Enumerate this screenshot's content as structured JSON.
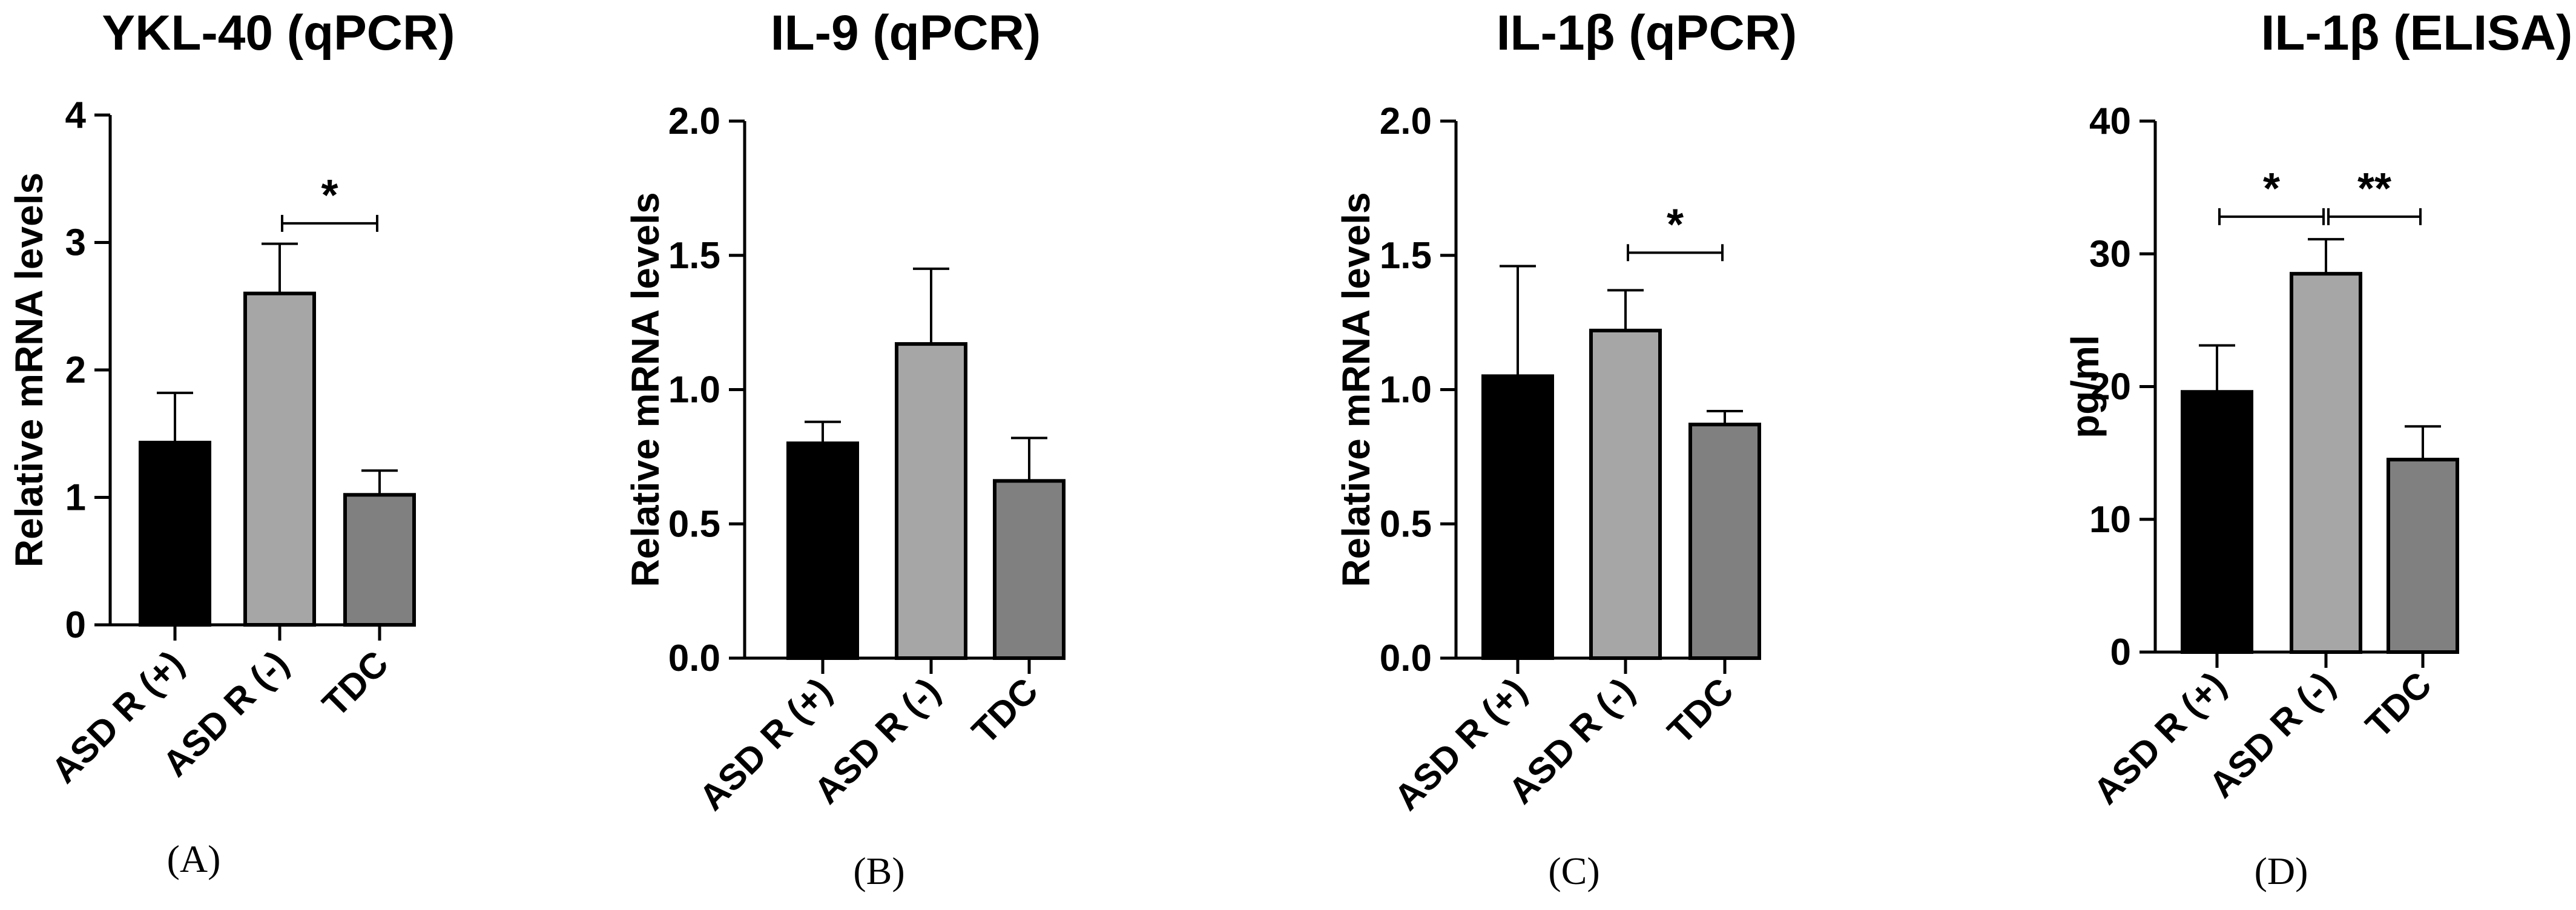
{
  "chart_data": [
    {
      "type": "bar",
      "title": "YKL-40 (qPCR)",
      "ylabel": "Relative mRNA levels",
      "xlabel": "",
      "panel_label": "(A)",
      "categories": [
        "ASD R (+)",
        "ASD R (-)",
        "TDC"
      ],
      "values": [
        1.43,
        2.6,
        1.02
      ],
      "errors": [
        0.39,
        0.39,
        0.19
      ],
      "bar_colors": [
        "#000000",
        "#a6a6a6",
        "#808080"
      ],
      "ylim": [
        0,
        4
      ],
      "yticks": [
        0,
        1,
        2,
        3,
        4
      ],
      "ytick_labels": [
        "0",
        "1",
        "2",
        "3",
        "4"
      ],
      "significance": [
        {
          "from": 1,
          "to": 2,
          "label": "*",
          "y": 3.15
        }
      ]
    },
    {
      "type": "bar",
      "title": "IL-9 (qPCR)",
      "ylabel": "Relative mRNA levels",
      "xlabel": "",
      "panel_label": "(B)",
      "categories": [
        "ASD R (+)",
        "ASD R (-)",
        "TDC"
      ],
      "values": [
        0.8,
        1.17,
        0.66
      ],
      "errors": [
        0.08,
        0.28,
        0.16
      ],
      "bar_colors": [
        "#000000",
        "#a6a6a6",
        "#808080"
      ],
      "ylim": [
        0,
        2
      ],
      "yticks": [
        0,
        0.5,
        1,
        1.5,
        2
      ],
      "ytick_labels": [
        "0.0",
        "0.5",
        "1.0",
        "1.5",
        "2.0"
      ],
      "significance": []
    },
    {
      "type": "bar",
      "title": "IL-1β (qPCR)",
      "ylabel": "Relative mRNA levels",
      "xlabel": "",
      "panel_label": "(C)",
      "categories": [
        "ASD R (+)",
        "ASD R (-)",
        "TDC"
      ],
      "values": [
        1.05,
        1.22,
        0.87
      ],
      "errors": [
        0.41,
        0.15,
        0.05
      ],
      "bar_colors": [
        "#000000",
        "#a6a6a6",
        "#808080"
      ],
      "ylim": [
        0,
        2
      ],
      "yticks": [
        0,
        0.5,
        1,
        1.5,
        2
      ],
      "ytick_labels": [
        "0.0",
        "0.5",
        "1.0",
        "1.5",
        "2.0"
      ],
      "significance": [
        {
          "from": 1,
          "to": 2,
          "label": "*",
          "y": 1.51
        }
      ]
    },
    {
      "type": "bar",
      "title": "IL-1β (ELISA)",
      "ylabel": "pg/ml",
      "xlabel": "",
      "panel_label": "(D)",
      "categories": [
        "ASD R (+)",
        "ASD R (-)",
        "TDC"
      ],
      "values": [
        19.6,
        28.5,
        14.5
      ],
      "errors": [
        3.5,
        2.6,
        2.5
      ],
      "bar_colors": [
        "#000000",
        "#a6a6a6",
        "#808080"
      ],
      "ylim": [
        0,
        40
      ],
      "yticks": [
        0,
        10,
        20,
        30,
        40
      ],
      "ytick_labels": [
        "0",
        "10",
        "20",
        "30",
        "40"
      ],
      "significance": [
        {
          "from": 0,
          "to": 1,
          "label": "*",
          "y": 32.8
        },
        {
          "from": 1,
          "to": 2,
          "label": "**",
          "y": 32.8
        }
      ]
    }
  ]
}
